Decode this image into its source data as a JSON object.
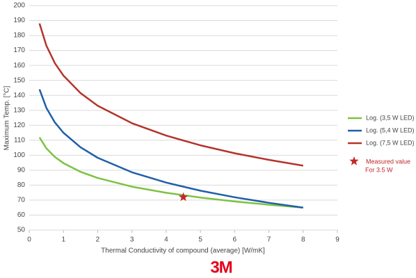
{
  "chart_data": {
    "type": "line",
    "x_label": "Thermal Conductivity of compound (average) [W/mK]",
    "y_label": "Maximum Temp. [°C]",
    "x": [
      0.3,
      0.5,
      0.75,
      1,
      1.5,
      2,
      3,
      4,
      5,
      6,
      7,
      8
    ],
    "series": [
      {
        "name": "Log. (3,5 W LED)",
        "color": "#7dc242",
        "values": [
          111.9,
          104.6,
          98.8,
          94.7,
          88.9,
          84.8,
          79.0,
          74.9,
          71.7,
          69.1,
          66.9,
          65.0
        ]
      },
      {
        "name": "Log. (5,4 W LED)",
        "color": "#1f5fa8",
        "values": [
          144.0,
          131.7,
          121.9,
          115.0,
          105.3,
          98.3,
          88.6,
          81.7,
          76.3,
          71.9,
          68.2,
          65.0
        ]
      },
      {
        "name": "Log. (7,5 W LED)",
        "color": "#b5332a",
        "values": [
          188.0,
          173.3,
          161.5,
          153.2,
          141.5,
          133.1,
          121.4,
          113.1,
          106.6,
          101.3,
          96.9,
          93.0
        ]
      }
    ],
    "measured": {
      "name": [
        "Measured value",
        "For 3.5 W"
      ],
      "color": "#c0292a",
      "x": [
        4.5
      ],
      "values": [
        72
      ]
    },
    "xlim": [
      0,
      9
    ],
    "xticks": [
      0,
      1,
      2,
      3,
      4,
      5,
      6,
      7,
      8,
      9
    ],
    "ylim": [
      50,
      200
    ],
    "yticks": [
      50,
      60,
      70,
      80,
      90,
      100,
      110,
      120,
      130,
      140,
      150,
      160,
      170,
      180,
      190,
      200
    ],
    "grid": true,
    "logo": "3M"
  }
}
